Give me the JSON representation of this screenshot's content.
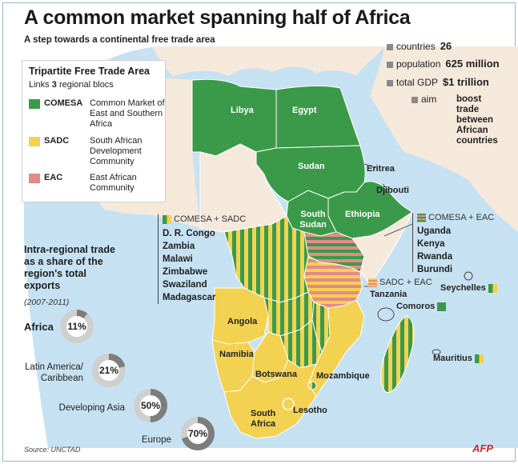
{
  "title": "A common market spanning half of Africa",
  "subtitle": "A step towards a continental free trade area",
  "legend": {
    "title": "Tripartite Free Trade Area",
    "links_prefix": "Links",
    "links_count": "3",
    "links_suffix": "regional blocs",
    "blocs": [
      {
        "code": "COMESA",
        "name": "Common Market of East and Southern Africa",
        "color": "#3a9a49"
      },
      {
        "code": "SADC",
        "name": "South African Development Community",
        "color": "#f3d151"
      },
      {
        "code": "EAC",
        "name": "East African Community",
        "color": "#e58a8a"
      }
    ]
  },
  "stats": [
    {
      "label": "countries",
      "value": "26"
    },
    {
      "label": "population",
      "value": "625 million"
    },
    {
      "label": "total GDP",
      "value": "$1 trillion"
    },
    {
      "label": "aim",
      "value": "boost trade between African countries"
    }
  ],
  "map_labels": {
    "libya": "Libya",
    "egypt": "Egypt",
    "sudan": "Sudan",
    "eritrea": "Eritrea",
    "djibouti": "Djibouti",
    "ethiopia": "Ethiopia",
    "south_sudan": "South Sudan",
    "angola": "Angola",
    "namibia": "Namibia",
    "botswana": "Botswana",
    "mozambique": "Mozambique",
    "lesotho": "Lesotho",
    "south_africa": "South Africa",
    "tanzania": "Tanzania",
    "seychelles": "Seychelles",
    "comoros": "Comoros",
    "mauritius": "Mauritius"
  },
  "combos": {
    "comesa_sadc": {
      "label": "COMESA + SADC",
      "countries": [
        "D. R. Congo",
        "Zambia",
        "Malawi",
        "Zimbabwe",
        "Swaziland",
        "Madagascar"
      ]
    },
    "comesa_eac": {
      "label": "COMESA + EAC",
      "countries": [
        "Uganda",
        "Kenya",
        "Rwanda",
        "Burundi"
      ]
    },
    "sadc_eac": {
      "label": "SADC + EAC"
    }
  },
  "intra": {
    "heading": "Intra-regional trade as a share of the region's total exports",
    "period": "(2007-2011)",
    "regions": [
      {
        "name": "Africa",
        "value": 11,
        "label": "11%"
      },
      {
        "name": "Latin America/ Caribbean",
        "value": 21,
        "label": "21%"
      },
      {
        "name": "Developing Asia",
        "value": 50,
        "label": "50%"
      },
      {
        "name": "Europe",
        "value": 70,
        "label": "70%"
      }
    ]
  },
  "source": "Source: UNCTAD",
  "credit": "AFP",
  "colors": {
    "sea": "#c6e2f2",
    "land": "#f5e9dc",
    "comesa": "#3a9a49",
    "sadc": "#f3d151",
    "eac": "#e58a8a",
    "donut_fill": "#7d7d7d",
    "donut_track": "#cfcfcf"
  }
}
